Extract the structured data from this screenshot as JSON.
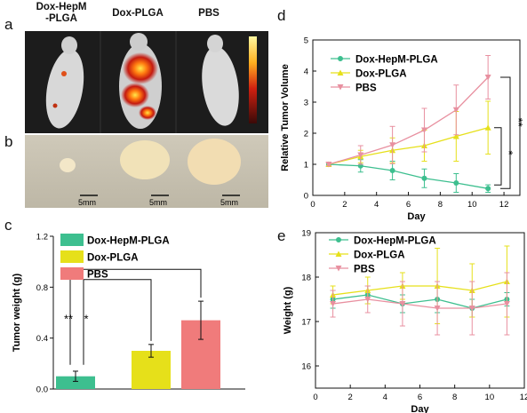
{
  "panels": {
    "a": "a",
    "b": "b",
    "c": "c",
    "d": "d",
    "e": "e"
  },
  "photo_labels": {
    "group1_line1": "Dox-HepM",
    "group1_line2": "-PLGA",
    "group2": "Dox-PLGA",
    "group3": "PBS"
  },
  "scale_bar": "5mm",
  "colors": {
    "dox_hepm_plga": "#3dbf8f",
    "dox_plga": "#e6e01a",
    "pbs": "#f07b7b",
    "pbs_line": "#e890a0"
  },
  "chart_data": [
    {
      "id": "d",
      "type": "line",
      "xlabel": "Day",
      "ylabel": "Relative Tumor Volume",
      "xlim": [
        0,
        13
      ],
      "ylim": [
        0,
        5
      ],
      "xticks": [
        "0",
        "2",
        "4",
        "6",
        "8",
        "10",
        "12"
      ],
      "yticks": [
        "0",
        "1",
        "2",
        "3",
        "4",
        "5"
      ],
      "legend": "top-left",
      "x": [
        1,
        3,
        5,
        7,
        9,
        11
      ],
      "series": [
        {
          "name": "Dox-HepM-PLGA",
          "values": [
            1.0,
            0.95,
            0.8,
            0.55,
            0.4,
            0.22
          ],
          "errors": [
            0.05,
            0.2,
            0.3,
            0.3,
            0.3,
            0.12
          ]
        },
        {
          "name": "Dox-PLGA",
          "values": [
            1.0,
            1.25,
            1.45,
            1.6,
            1.9,
            2.18
          ],
          "errors": [
            0.05,
            0.2,
            0.4,
            0.5,
            0.8,
            0.85
          ]
        },
        {
          "name": "PBS",
          "values": [
            1.0,
            1.3,
            1.62,
            2.1,
            2.75,
            3.8
          ],
          "errors": [
            0.05,
            0.3,
            0.6,
            0.7,
            0.8,
            0.7
          ]
        }
      ],
      "annotations": [
        "**",
        "*"
      ]
    },
    {
      "id": "c",
      "type": "bar",
      "ylabel": "Tumor weight (g)",
      "ylim": [
        0,
        1.2
      ],
      "yticks": [
        "0.0",
        "0.4",
        "0.8",
        "1.2"
      ],
      "legend": "top-left",
      "categories": [
        "Dox-HepM-PLGA",
        "Dox-PLGA",
        "PBS"
      ],
      "values": [
        0.1,
        0.3,
        0.54
      ],
      "errors": [
        0.04,
        0.05,
        0.15
      ],
      "annotations": [
        "**",
        "*"
      ]
    },
    {
      "id": "e",
      "type": "line",
      "xlabel": "Day",
      "ylabel": "Weight (g)",
      "xlim": [
        0,
        12
      ],
      "ylim": [
        15.5,
        19
      ],
      "xticks": [
        "0",
        "2",
        "4",
        "6",
        "8",
        "10",
        "12"
      ],
      "yticks": [
        "16",
        "17",
        "18",
        "19"
      ],
      "legend": "top-left",
      "x": [
        1,
        3,
        5,
        7,
        9,
        11
      ],
      "series": [
        {
          "name": "Dox-HepM-PLGA",
          "values": [
            17.5,
            17.6,
            17.4,
            17.5,
            17.3,
            17.5
          ],
          "errors": [
            0.2,
            0.2,
            0.2,
            0.3,
            0.2,
            0.15
          ]
        },
        {
          "name": "Dox-PLGA",
          "values": [
            17.6,
            17.7,
            17.8,
            17.8,
            17.7,
            17.9
          ],
          "errors": [
            0.2,
            0.3,
            0.3,
            0.85,
            0.6,
            0.8
          ]
        },
        {
          "name": "PBS",
          "values": [
            17.4,
            17.5,
            17.4,
            17.3,
            17.3,
            17.4
          ],
          "errors": [
            0.3,
            0.3,
            0.5,
            0.6,
            0.6,
            0.7
          ]
        }
      ]
    }
  ]
}
